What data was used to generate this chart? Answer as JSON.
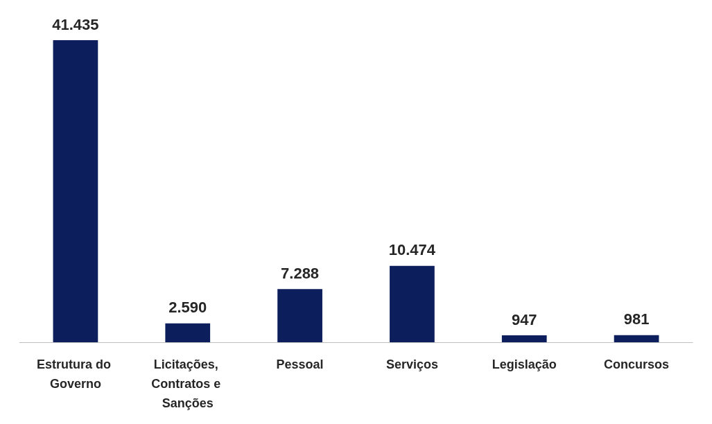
{
  "chart_data": {
    "type": "bar",
    "categories": [
      "Estrutura do Governo",
      "Licitações, Contratos e Sanções",
      "Pessoal",
      "Serviços",
      "Legislação",
      "Concursos"
    ],
    "values": [
      41435,
      2590,
      7288,
      10474,
      947,
      981
    ],
    "value_labels": [
      "41.435",
      "2.590",
      "7.288",
      "10.474",
      "947",
      "981"
    ],
    "color": "#0c1f5c",
    "grid": false
  }
}
